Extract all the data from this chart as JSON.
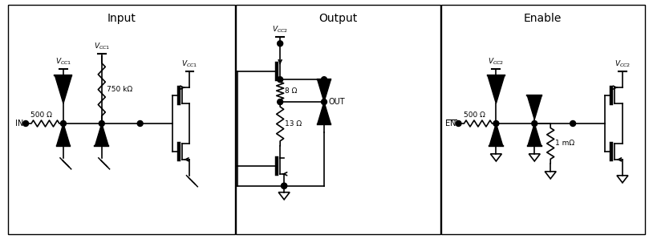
{
  "title_input": "Input",
  "title_output": "Output",
  "title_enable": "Enable",
  "lw": 1.2,
  "lc": "#000000",
  "title_fs": 10,
  "label_fs": 7,
  "vcc_fs": 7
}
